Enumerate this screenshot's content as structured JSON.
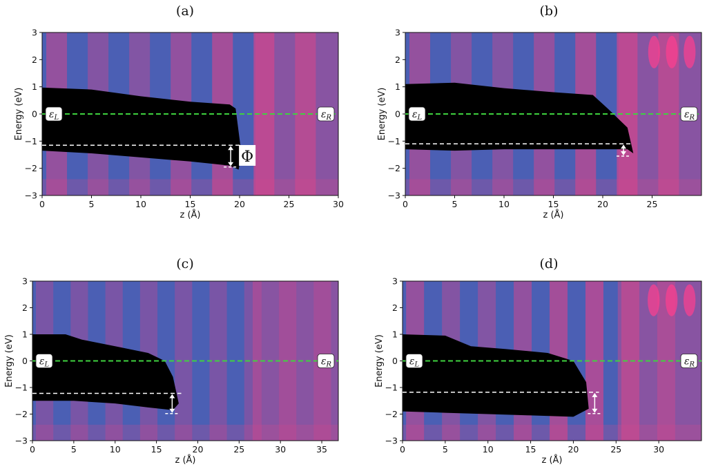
{
  "colors": {
    "background_blue": "#4b5fb4",
    "band_magenta": "#d2468c",
    "filled_region": "#000000",
    "fermi_line": "#3fd23f",
    "workfunction_line": "#ffffff"
  },
  "chart_data": [
    {
      "type": "heatmap",
      "title": "(a)",
      "xlabel": "z (Å)",
      "ylabel": "Energy (eV)",
      "xlim": [
        0,
        30
      ],
      "ylim": [
        -3,
        3
      ],
      "xticks": [
        0,
        5,
        10,
        15,
        20,
        25,
        30
      ],
      "yticks": [
        -3,
        -2,
        -1,
        0,
        1,
        2,
        3
      ],
      "fermi_level": 0,
      "fermi_labels": [
        "ε_L",
        "ε_R"
      ],
      "occupied_region": {
        "top": [
          [
            0,
            0.97
          ],
          [
            5,
            0.9
          ],
          [
            10,
            0.65
          ],
          [
            15,
            0.45
          ],
          [
            19,
            0.35
          ],
          [
            19.6,
            0.2
          ]
        ],
        "bottom": [
          [
            0,
            -1.35
          ],
          [
            5,
            -1.45
          ],
          [
            10,
            -1.6
          ],
          [
            15,
            -1.75
          ],
          [
            19,
            -1.9
          ],
          [
            19.9,
            -2.05
          ],
          [
            20.2,
            -1.5
          ]
        ]
      },
      "workfunction": {
        "x_start": 0,
        "x_end": 20.2,
        "upper": -1.15,
        "lower": -1.95,
        "arrow_x": 19.1
      },
      "annotation": "Φ"
    },
    {
      "type": "heatmap",
      "title": "(b)",
      "xlabel": "z (Å)",
      "ylabel": "Energy (eV)",
      "xlim": [
        0,
        30
      ],
      "ylim": [
        -3,
        3
      ],
      "xticks": [
        0,
        5,
        10,
        15,
        20,
        25
      ],
      "yticks": [
        -3,
        -2,
        -1,
        0,
        1,
        2,
        3
      ],
      "fermi_level": 0,
      "fermi_labels": [
        "ε_L",
        "ε_R"
      ],
      "occupied_region": {
        "top": [
          [
            0,
            1.1
          ],
          [
            5,
            1.15
          ],
          [
            10,
            0.95
          ],
          [
            15,
            0.8
          ],
          [
            19,
            0.7
          ],
          [
            20.5,
            0.2
          ],
          [
            22.5,
            -0.5
          ]
        ],
        "bottom": [
          [
            0,
            -1.3
          ],
          [
            5,
            -1.35
          ],
          [
            10,
            -1.3
          ],
          [
            15,
            -1.3
          ],
          [
            19,
            -1.3
          ],
          [
            22.5,
            -1.3
          ],
          [
            23.1,
            -1.45
          ]
        ]
      },
      "workfunction": {
        "x_start": 0,
        "x_end": 23.0,
        "upper": -1.1,
        "lower": -1.55,
        "arrow_x": 22.1
      },
      "annotation": ""
    },
    {
      "type": "heatmap",
      "title": "(c)",
      "xlabel": "z (Å)",
      "ylabel": "Energy (eV)",
      "xlim": [
        0,
        37
      ],
      "ylim": [
        -3,
        3
      ],
      "xticks": [
        0,
        5,
        10,
        15,
        20,
        25,
        30,
        35
      ],
      "yticks": [
        -3,
        -2,
        -1,
        0,
        1,
        2,
        3
      ],
      "fermi_level": 0,
      "fermi_labels": [
        "ε_L",
        "ε_R"
      ],
      "occupied_region": {
        "top": [
          [
            0,
            1.0
          ],
          [
            4,
            1.0
          ],
          [
            6,
            0.8
          ],
          [
            10,
            0.55
          ],
          [
            14,
            0.3
          ],
          [
            16,
            0.0
          ],
          [
            17,
            -0.6
          ]
        ],
        "bottom": [
          [
            0,
            -1.5
          ],
          [
            5,
            -1.5
          ],
          [
            10,
            -1.6
          ],
          [
            14,
            -1.75
          ],
          [
            17,
            -1.85
          ],
          [
            17.7,
            -1.6
          ]
        ]
      },
      "workfunction": {
        "x_start": 0,
        "x_end": 18.0,
        "upper": -1.22,
        "lower": -1.98,
        "arrow_x": 16.9
      },
      "annotation": ""
    },
    {
      "type": "heatmap",
      "title": "(d)",
      "xlabel": "z (Å)",
      "ylabel": "Energy (eV)",
      "xlim": [
        0,
        35
      ],
      "ylim": [
        -3,
        3
      ],
      "xticks": [
        0,
        5,
        10,
        15,
        20,
        25,
        30
      ],
      "yticks": [
        -3,
        -2,
        -1,
        0,
        1,
        2,
        3
      ],
      "fermi_level": 0,
      "fermi_labels": [
        "ε_L",
        "ε_R"
      ],
      "occupied_region": {
        "top": [
          [
            0,
            1.0
          ],
          [
            5,
            0.95
          ],
          [
            8,
            0.55
          ],
          [
            12,
            0.45
          ],
          [
            17,
            0.3
          ],
          [
            20,
            0.0
          ],
          [
            21.5,
            -0.8
          ]
        ],
        "bottom": [
          [
            0,
            -1.9
          ],
          [
            5,
            -1.95
          ],
          [
            10,
            -2.0
          ],
          [
            15,
            -2.05
          ],
          [
            20,
            -2.1
          ],
          [
            21.8,
            -1.8
          ]
        ]
      },
      "workfunction": {
        "x_start": 0,
        "x_end": 23.0,
        "upper": -1.18,
        "lower": -1.98,
        "arrow_x": 22.5
      },
      "annotation": ""
    }
  ]
}
